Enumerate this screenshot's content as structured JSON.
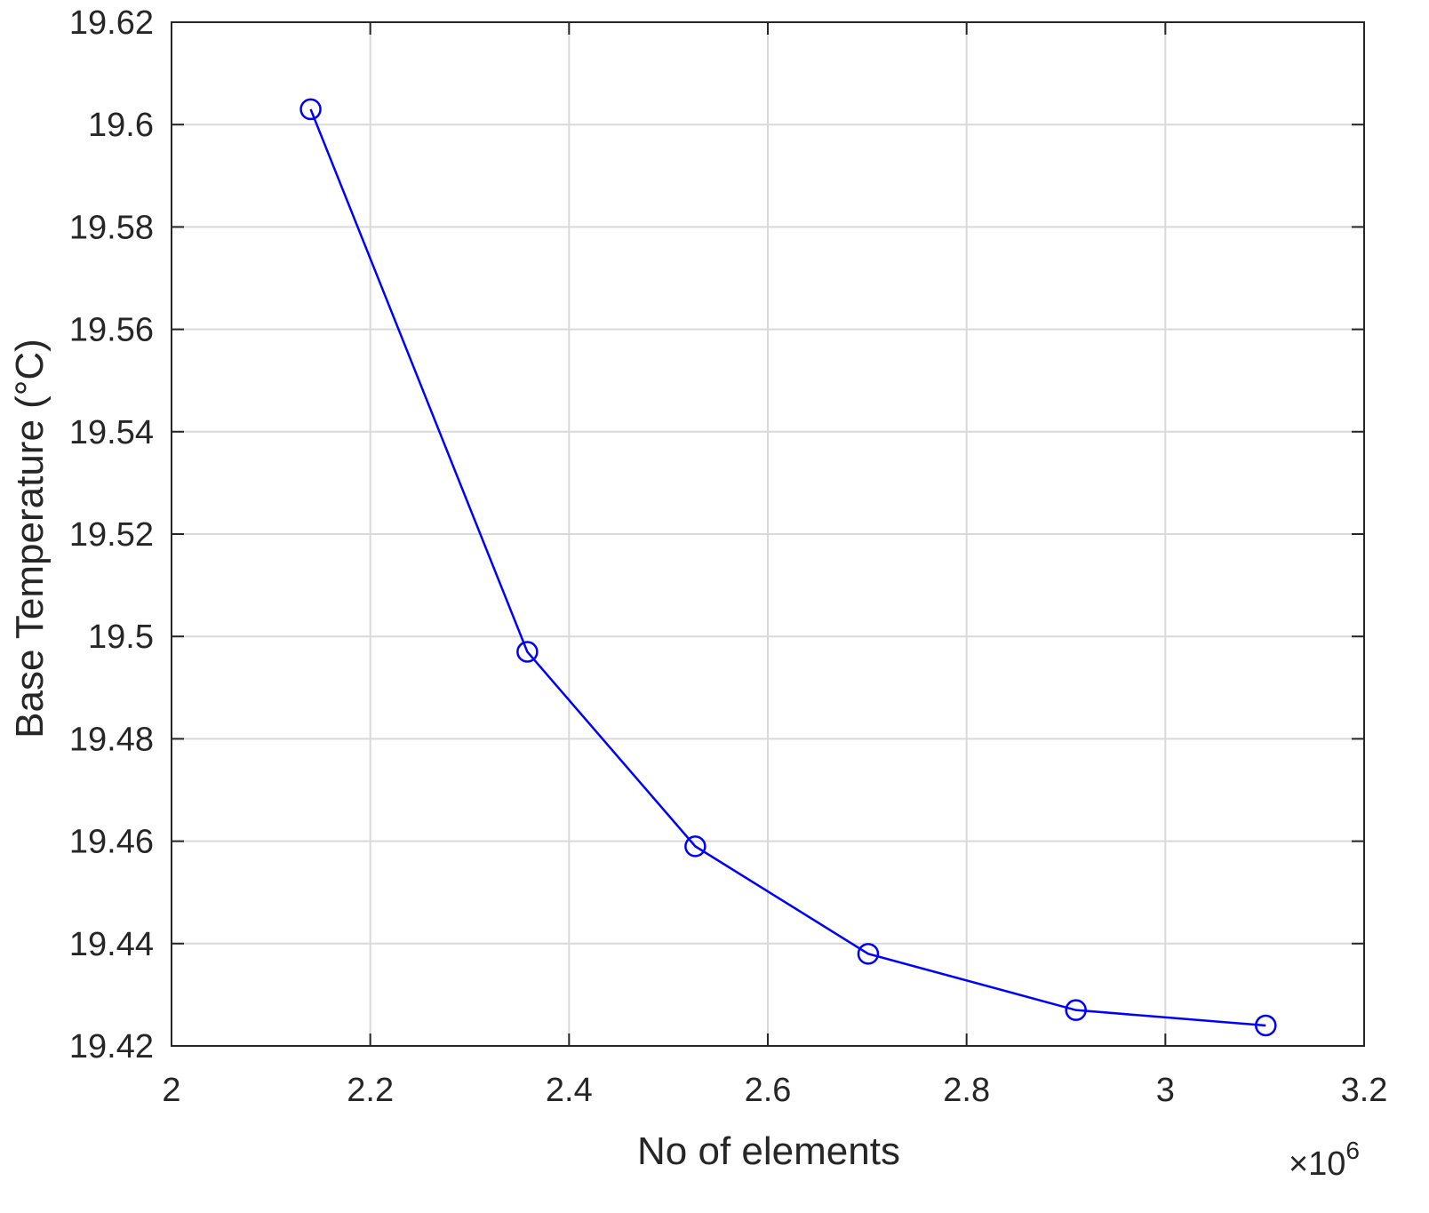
{
  "chart_data": {
    "type": "line",
    "title": "",
    "xlabel": "No of elements",
    "ylabel": "Base Temperature (°C)",
    "x_exponent_label": {
      "prefix": "×10",
      "power": "6"
    },
    "xlim": [
      2.0,
      3.2
    ],
    "ylim": [
      19.42,
      19.62
    ],
    "x_scale_multiplier": 1000000,
    "x_ticks": [
      "2",
      "2.2",
      "2.4",
      "2.6",
      "2.8",
      "3",
      "3.2"
    ],
    "y_ticks": [
      "19.42",
      "19.44",
      "19.46",
      "19.48",
      "19.5",
      "19.52",
      "19.54",
      "19.56",
      "19.58",
      "19.6",
      "19.62"
    ],
    "grid": true,
    "series": [
      {
        "marker": "circle",
        "color": "#0000ff",
        "x": [
          2.14,
          2.358,
          2.527,
          2.701,
          2.91,
          3.101
        ],
        "y": [
          19.603,
          19.497,
          19.459,
          19.438,
          19.427,
          19.424
        ]
      }
    ]
  }
}
